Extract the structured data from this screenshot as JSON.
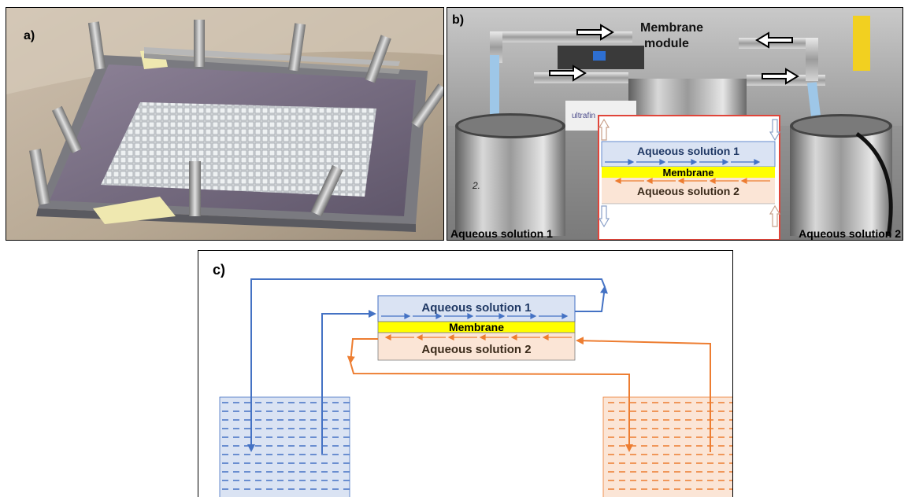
{
  "panel_a": {
    "label": "a)"
  },
  "panel_b": {
    "label": "b)",
    "module_label": "Membrane module",
    "module_label_line1": "Membrane",
    "module_label_line2": "module",
    "inset": {
      "top_layer": "Aqueous solution 1",
      "membrane": "Membrane",
      "bottom_layer": "Aqueous solution 2"
    },
    "tank_left_label": "Aqueous solution 1",
    "tank_right_label": "Aqueous solution 2",
    "equipment_label": "ultrafin",
    "tank_marking": "2."
  },
  "panel_c": {
    "label": "c)",
    "top_layer": "Aqueous solution 1",
    "membrane": "Membrane",
    "bottom_layer": "Aqueous solution 2"
  },
  "colors": {
    "solution1_stroke": "#4472c4",
    "solution1_fill": "#dae3f3",
    "solution2_stroke": "#ed7d31",
    "solution2_fill": "#fbe5d6",
    "membrane_fill": "#ffff00",
    "inset_border": "#e0453a"
  }
}
